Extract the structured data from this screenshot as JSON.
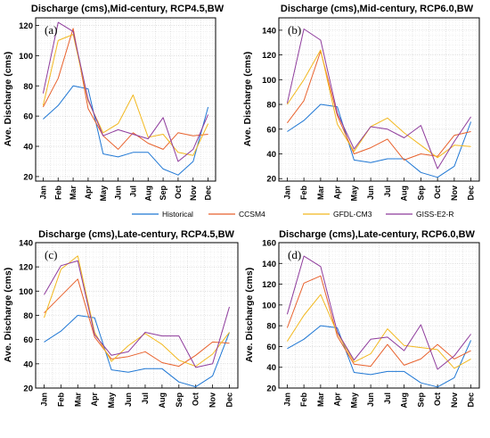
{
  "legend": [
    {
      "name": "Historical",
      "color": "#1f77d4"
    },
    {
      "name": "CCSM4",
      "color": "#e8612c"
    },
    {
      "name": "GFDL-CM3",
      "color": "#f2b81f"
    },
    {
      "name": "GISS-E2-R",
      "color": "#8e3b9c"
    }
  ],
  "chart_data": [
    {
      "type": "line",
      "panel_label": "(a)",
      "title": "Discharge (cms),Mid-century, RCP4.5,BW",
      "ylabel": "Ave. Discharge (cms)",
      "xlabel": "",
      "categories": [
        "Jan",
        "Feb",
        "Mar",
        "Apr",
        "May",
        "Jun",
        "Jul",
        "Aug",
        "Sep",
        "Oct",
        "Nov",
        "Dec"
      ],
      "ylim": [
        17,
        125
      ],
      "yticks": [
        20,
        40,
        60,
        80,
        100,
        120
      ],
      "grid": true,
      "series": [
        {
          "name": "Historical",
          "color": "#1f77d4",
          "values": [
            58,
            67,
            80,
            78,
            35,
            33,
            36,
            36,
            25,
            21,
            30,
            66
          ]
        },
        {
          "name": "CCSM4",
          "color": "#e8612c",
          "values": [
            66,
            85,
            118,
            65,
            47,
            38,
            49,
            42,
            38,
            49,
            47,
            48
          ]
        },
        {
          "name": "GFDL-CM3",
          "color": "#f2b81f",
          "values": [
            67,
            110,
            114,
            70,
            49,
            55,
            74,
            46,
            48,
            36,
            34,
            55
          ]
        },
        {
          "name": "GISS-E2-R",
          "color": "#8e3b9c",
          "values": [
            75,
            122,
            116,
            71,
            47,
            51,
            48,
            45,
            59,
            30,
            38,
            61
          ]
        }
      ]
    },
    {
      "type": "line",
      "panel_label": "(b)",
      "title": "Discharge (cms),Mid-century, RCP6.0,BW",
      "ylabel": "Ave. Discharge (cms)",
      "xlabel": "",
      "categories": [
        "Jan",
        "Feb",
        "Mar",
        "Apr",
        "May",
        "Jun",
        "Jul",
        "Aug",
        "Sep",
        "Oct",
        "Nov",
        "Dec"
      ],
      "ylim": [
        18,
        150
      ],
      "yticks": [
        20,
        40,
        60,
        80,
        100,
        120,
        140
      ],
      "grid": true,
      "series": [
        {
          "name": "Historical",
          "color": "#1f77d4",
          "values": [
            58,
            67,
            80,
            78,
            35,
            33,
            36,
            36,
            25,
            21,
            30,
            66
          ]
        },
        {
          "name": "CCSM4",
          "color": "#e8612c",
          "values": [
            65,
            83,
            123,
            71,
            40,
            45,
            52,
            35,
            40,
            38,
            55,
            58
          ]
        },
        {
          "name": "GFDL-CM3",
          "color": "#f2b81f",
          "values": [
            80,
            100,
            124,
            64,
            42,
            62,
            69,
            57,
            47,
            37,
            47,
            46
          ]
        },
        {
          "name": "GISS-E2-R",
          "color": "#8e3b9c",
          "values": [
            81,
            141,
            132,
            73,
            44,
            62,
            60,
            53,
            63,
            28,
            50,
            70
          ]
        }
      ]
    },
    {
      "type": "line",
      "panel_label": "(c)",
      "title": "Discharge (cms),Late-century, RCP4.5,BW",
      "ylabel": "Ave. Discharge (cms)",
      "xlabel": "",
      "categories": [
        "Jan",
        "Feb",
        "Mar",
        "Apr",
        "May",
        "Jun",
        "Jul",
        "Aug",
        "Sep",
        "Oct",
        "Nov",
        "Dec"
      ],
      "ylim": [
        20,
        140
      ],
      "yticks": [
        20,
        40,
        60,
        80,
        100,
        120,
        140
      ],
      "grid": true,
      "series": [
        {
          "name": "Historical",
          "color": "#1f77d4",
          "values": [
            58,
            67,
            80,
            78,
            35,
            33,
            36,
            36,
            25,
            21,
            30,
            66
          ]
        },
        {
          "name": "CCSM4",
          "color": "#e8612c",
          "values": [
            82,
            96,
            110,
            62,
            44,
            46,
            50,
            41,
            38,
            47,
            58,
            57
          ]
        },
        {
          "name": "GFDL-CM3",
          "color": "#f2b81f",
          "values": [
            78,
            118,
            129,
            66,
            42,
            55,
            65,
            56,
            43,
            38,
            48,
            66
          ]
        },
        {
          "name": "GISS-E2-R",
          "color": "#8e3b9c",
          "values": [
            97,
            121,
            125,
            64,
            47,
            50,
            66,
            63,
            63,
            37,
            40,
            87
          ]
        }
      ]
    },
    {
      "type": "line",
      "panel_label": "(d)",
      "title": "Discharge (cms),Late-century, RCP6.0,BW",
      "ylabel": "Ave. Discharge (cms)",
      "xlabel": "",
      "categories": [
        "Jan",
        "Feb",
        "Mar",
        "Apr",
        "May",
        "Jun",
        "Jul",
        "Aug",
        "Sep",
        "Oct",
        "Nov",
        "Dec"
      ],
      "ylim": [
        20,
        160
      ],
      "yticks": [
        20,
        40,
        60,
        80,
        100,
        120,
        140,
        160
      ],
      "grid": true,
      "series": [
        {
          "name": "Historical",
          "color": "#1f77d4",
          "values": [
            58,
            67,
            80,
            78,
            35,
            33,
            36,
            36,
            25,
            21,
            30,
            66
          ]
        },
        {
          "name": "CCSM4",
          "color": "#e8612c",
          "values": [
            78,
            121,
            128,
            70,
            43,
            41,
            62,
            42,
            48,
            62,
            48,
            56
          ]
        },
        {
          "name": "GFDL-CM3",
          "color": "#f2b81f",
          "values": [
            65,
            90,
            110,
            73,
            45,
            53,
            77,
            61,
            59,
            57,
            39,
            48
          ]
        },
        {
          "name": "GISS-E2-R",
          "color": "#8e3b9c",
          "values": [
            91,
            147,
            137,
            74,
            47,
            67,
            69,
            56,
            81,
            38,
            51,
            72
          ]
        }
      ]
    }
  ]
}
